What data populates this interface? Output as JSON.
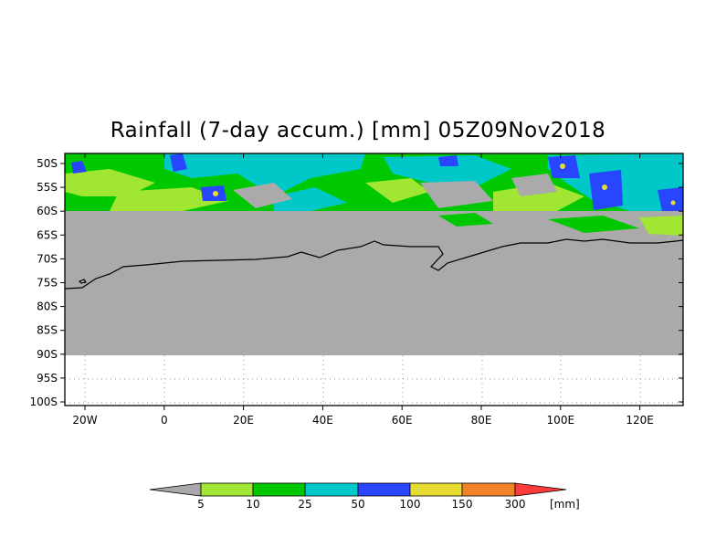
{
  "title": "Rainfall (7-day accum.) [mm] 05Z09Nov2018",
  "map": {
    "lat_labels": [
      "50S",
      "55S",
      "60S",
      "65S",
      "70S",
      "75S",
      "80S",
      "85S",
      "90S",
      "95S",
      "100S"
    ],
    "lon_labels": [
      "20W",
      "0",
      "20E",
      "40E",
      "60E",
      "80E",
      "100E",
      "120E"
    ],
    "lon_range": [
      -25,
      131
    ],
    "lat_range": [
      -100,
      -48.5
    ],
    "data_lat_limit_north": -60,
    "grey_fill_lat_limit": -90,
    "grid": "dotted"
  },
  "legend": {
    "units": "[mm]",
    "ticks": [
      "5",
      "10",
      "25",
      "50",
      "100",
      "150",
      "300"
    ],
    "colors": {
      "below_5": "#a8a8a8",
      "5_10": "#a0e632",
      "10_25": "#00c800",
      "25_50": "#00c8c8",
      "50_100": "#2846ff",
      "100_150": "#e6dc32",
      "150_300": "#f08228",
      "above_300": "#fa3c3c"
    }
  }
}
